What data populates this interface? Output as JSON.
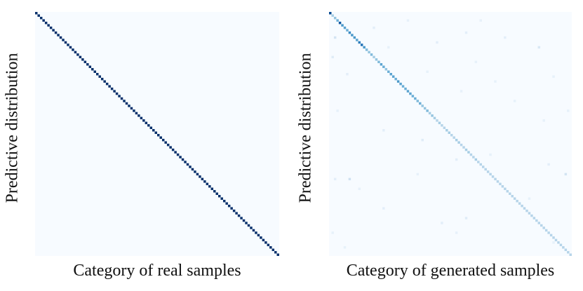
{
  "chart_data": [
    {
      "type": "heatmap",
      "xlabel": "Category of real samples",
      "ylabel": "Predictive distribution",
      "n": 100,
      "colormap": [
        "#f7fbff",
        "#deebf7",
        "#c6dbef",
        "#9ecae1",
        "#6baed6",
        "#4292c6",
        "#2171b5",
        "#08519c",
        "#08306b"
      ],
      "diagonal_values": [
        1,
        1,
        1,
        1,
        1,
        1,
        1,
        1,
        1,
        1,
        1,
        1,
        1,
        1,
        1,
        1,
        1,
        1,
        1,
        1,
        1,
        1,
        1,
        1,
        1,
        1,
        1,
        1,
        1,
        1,
        1,
        1,
        1,
        1,
        1,
        1,
        1,
        1,
        1,
        1,
        1,
        1,
        1,
        1,
        1,
        1,
        1,
        1,
        1,
        1,
        1,
        1,
        1,
        1,
        1,
        1,
        1,
        1,
        1,
        1,
        1,
        1,
        1,
        1,
        1,
        1,
        1,
        1,
        1,
        1,
        1,
        1,
        1,
        1,
        1,
        1,
        1,
        1,
        1,
        1,
        1,
        1,
        1,
        1,
        1,
        1,
        1,
        1,
        1,
        1,
        1,
        1,
        1,
        1,
        1,
        1,
        1,
        1,
        1,
        1
      ],
      "off_diagonal": []
    },
    {
      "type": "heatmap",
      "xlabel": "Category of generated samples",
      "ylabel": "Predictive distribution",
      "n": 100,
      "colormap": [
        "#f7fbff",
        "#deebf7",
        "#c6dbef",
        "#9ecae1",
        "#6baed6",
        "#4292c6",
        "#2171b5",
        "#08519c",
        "#08306b"
      ],
      "diagonal_values": [
        0.9,
        0.35,
        0.4,
        0.5,
        0.85,
        0.6,
        0.55,
        0.5,
        0.65,
        0.6,
        0.6,
        0.55,
        0.7,
        0.75,
        0.6,
        0.45,
        0.4,
        0.45,
        0.35,
        0.4,
        0.45,
        0.55,
        0.5,
        0.4,
        0.5,
        0.55,
        0.55,
        0.5,
        0.6,
        0.55,
        0.5,
        0.5,
        0.55,
        0.55,
        0.5,
        0.5,
        0.45,
        0.5,
        0.4,
        0.4,
        0.45,
        0.35,
        0.4,
        0.35,
        0.3,
        0.35,
        0.3,
        0.3,
        0.35,
        0.35,
        0.3,
        0.3,
        0.35,
        0.35,
        0.3,
        0.3,
        0.35,
        0.35,
        0.3,
        0.3,
        0.35,
        0.3,
        0.3,
        0.3,
        0.3,
        0.3,
        0.3,
        0.3,
        0.3,
        0.3,
        0.3,
        0.3,
        0.3,
        0.3,
        0.3,
        0.3,
        0.3,
        0.3,
        0.3,
        0.3,
        0.3,
        0.3,
        0.3,
        0.3,
        0.3,
        0.3,
        0.3,
        0.3,
        0.3,
        0.3,
        0.3,
        0.3,
        0.3,
        0.3,
        0.3,
        0.3,
        0.3,
        0.3,
        0.3,
        0.3
      ],
      "off_diagonal": [
        {
          "row": 10,
          "col": 2,
          "value": 0.18
        },
        {
          "row": 18,
          "col": 1,
          "value": 0.12
        },
        {
          "row": 25,
          "col": 7,
          "value": 0.1
        },
        {
          "row": 40,
          "col": 3,
          "value": 0.08
        },
        {
          "row": 68,
          "col": 2,
          "value": 0.1
        },
        {
          "row": 68,
          "col": 8,
          "value": 0.2
        },
        {
          "row": 90,
          "col": 1,
          "value": 0.08
        },
        {
          "row": 6,
          "col": 18,
          "value": 0.1
        },
        {
          "row": 14,
          "col": 24,
          "value": 0.08
        },
        {
          "row": 48,
          "col": 22,
          "value": 0.1
        },
        {
          "row": 80,
          "col": 22,
          "value": 0.1
        },
        {
          "row": 12,
          "col": 44,
          "value": 0.1
        },
        {
          "row": 24,
          "col": 40,
          "value": 0.08
        },
        {
          "row": 52,
          "col": 38,
          "value": 0.12
        },
        {
          "row": 66,
          "col": 36,
          "value": 0.08
        },
        {
          "row": 86,
          "col": 46,
          "value": 0.1
        },
        {
          "row": 8,
          "col": 56,
          "value": 0.1
        },
        {
          "row": 20,
          "col": 60,
          "value": 0.08
        },
        {
          "row": 32,
          "col": 54,
          "value": 0.08
        },
        {
          "row": 60,
          "col": 52,
          "value": 0.1
        },
        {
          "row": 84,
          "col": 56,
          "value": 0.12
        },
        {
          "row": 90,
          "col": 52,
          "value": 0.08
        },
        {
          "row": 10,
          "col": 72,
          "value": 0.1
        },
        {
          "row": 28,
          "col": 68,
          "value": 0.08
        },
        {
          "row": 36,
          "col": 76,
          "value": 0.08
        },
        {
          "row": 58,
          "col": 66,
          "value": 0.08
        },
        {
          "row": 76,
          "col": 82,
          "value": 0.08
        },
        {
          "row": 14,
          "col": 86,
          "value": 0.15
        },
        {
          "row": 26,
          "col": 92,
          "value": 0.08
        },
        {
          "row": 44,
          "col": 88,
          "value": 0.08
        },
        {
          "row": 66,
          "col": 97,
          "value": 0.18
        },
        {
          "row": 62,
          "col": 90,
          "value": 0.1
        },
        {
          "row": 96,
          "col": 6,
          "value": 0.08
        },
        {
          "row": 3,
          "col": 32,
          "value": 0.08
        },
        {
          "row": 3,
          "col": 62,
          "value": 0.08
        },
        {
          "row": 40,
          "col": 98,
          "value": 0.08
        },
        {
          "row": 72,
          "col": 12,
          "value": 0.08
        },
        {
          "row": 94,
          "col": 92,
          "value": 0.08
        }
      ]
    }
  ]
}
